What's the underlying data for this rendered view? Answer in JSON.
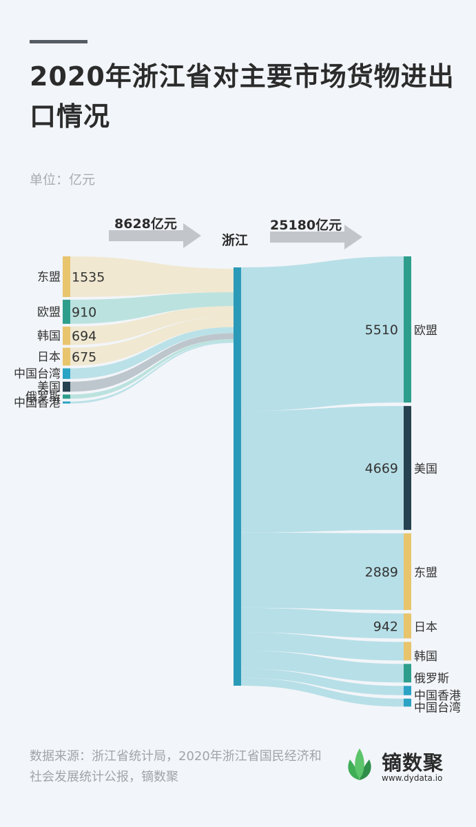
{
  "title": "2020年浙江省对主要市场货物进出口情况",
  "unit_label": "单位：亿元",
  "import_total_label": "8628亿元",
  "export_total_label": "25180亿元",
  "center_label": "浙江",
  "source_text": "数据来源：浙江省统计局，2020年浙江省国民经济和社会发展统计公报，镝数聚",
  "brand": {
    "name": "镝数聚",
    "url": "www.dydata.io"
  },
  "colors": {
    "background": "#f2f5f9",
    "center_node": "#2a9ab8",
    "asean": "#e8c46c",
    "eu": "#2e9e8c",
    "korea": "#e8c46c",
    "japan": "#e8c46c",
    "taiwan": "#2aa3c4",
    "usa": "#26414f",
    "russia": "#2e9e8c",
    "hongkong": "#2aa3c4",
    "flow_import_beige": "#efe7cf",
    "flow_import_teal": "#b7e0dc",
    "flow_import_blue": "#b6dfe6",
    "flow_import_gray": "#b9c3c9",
    "flow_export": "#b3dde6",
    "arrow": "#c2c6ca"
  },
  "chart_data": {
    "type": "sankey",
    "title": "2020年浙江省对主要市场货物进出口情况",
    "unit": "亿元",
    "center": "浙江",
    "imports": {
      "total": 8628,
      "sources": [
        {
          "name": "东盟",
          "value": 1535,
          "value_label": "1535",
          "color": "#e8c46c",
          "flow": "#efe7cf"
        },
        {
          "name": "欧盟",
          "value": 910,
          "value_label": "910",
          "color": "#2e9e8c",
          "flow": "#b7e0dc"
        },
        {
          "name": "韩国",
          "value": 694,
          "value_label": "694",
          "color": "#e8c46c",
          "flow": "#efe7cf"
        },
        {
          "name": "日本",
          "value": 675,
          "value_label": "675",
          "color": "#e8c46c",
          "flow": "#efe7cf"
        },
        {
          "name": "中国台湾",
          "value": 400,
          "value_label": "",
          "color": "#2aa3c4",
          "flow": "#b6dfe6"
        },
        {
          "name": "美国",
          "value": 380,
          "value_label": "",
          "color": "#26414f",
          "flow": "#b9c3c9"
        },
        {
          "name": "俄罗斯",
          "value": 160,
          "value_label": "",
          "color": "#2e9e8c",
          "flow": "#b7e0dc"
        },
        {
          "name": "中国香港",
          "value": 30,
          "value_label": "",
          "color": "#2aa3c4",
          "flow": "#b6dfe6"
        }
      ]
    },
    "exports": {
      "total": 25180,
      "targets": [
        {
          "name": "欧盟",
          "value": 5510,
          "value_label": "5510",
          "color": "#2e9e8c"
        },
        {
          "name": "美国",
          "value": 4669,
          "value_label": "4669",
          "color": "#26414f"
        },
        {
          "name": "东盟",
          "value": 2889,
          "value_label": "2889",
          "color": "#e8c46c"
        },
        {
          "name": "日本",
          "value": 942,
          "value_label": "942",
          "color": "#e8c46c"
        },
        {
          "name": "韩国",
          "value": 700,
          "value_label": "",
          "color": "#e8c46c"
        },
        {
          "name": "俄罗斯",
          "value": 700,
          "value_label": "",
          "color": "#2e9e8c"
        },
        {
          "name": "中国香港",
          "value": 350,
          "value_label": "",
          "color": "#2aa3c4"
        },
        {
          "name": "中国台湾",
          "value": 300,
          "value_label": "",
          "color": "#2aa3c4"
        }
      ]
    }
  }
}
